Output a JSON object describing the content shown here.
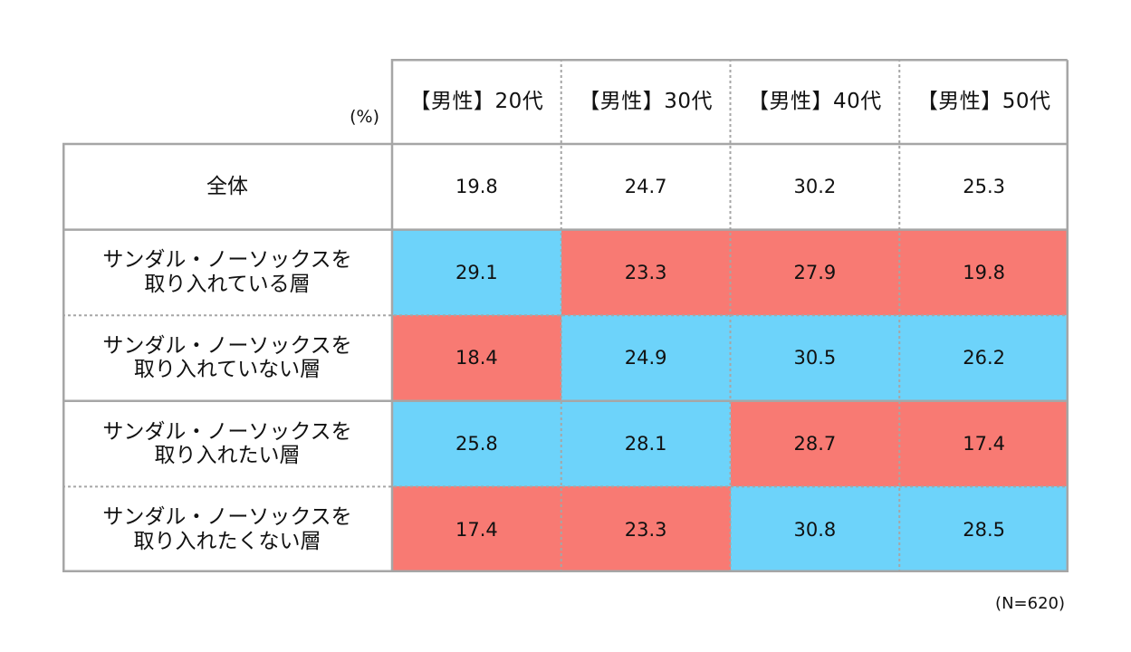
{
  "unit_label": "(%)",
  "note": "(N=620)",
  "colors": {
    "high": "#6dd3fa",
    "low": "#f87a73",
    "border": "#a6a6a6",
    "text": "#111111"
  },
  "chart_data": {
    "type": "table",
    "columns": [
      "【男性】20代",
      "【男性】30代",
      "【男性】40代",
      "【男性】50代"
    ],
    "rows": [
      {
        "label": "全体",
        "values": [
          "19.8",
          "24.7",
          "30.2",
          "25.3"
        ],
        "highlight": [
          "none",
          "none",
          "none",
          "none"
        ]
      },
      {
        "label": "サンダル・ノーソックスを\n取り入れている層",
        "values": [
          "29.1",
          "23.3",
          "27.9",
          "19.8"
        ],
        "highlight": [
          "high",
          "low",
          "low",
          "low"
        ]
      },
      {
        "label": "サンダル・ノーソックスを\n取り入れていない層",
        "values": [
          "18.4",
          "24.9",
          "30.5",
          "26.2"
        ],
        "highlight": [
          "low",
          "high",
          "high",
          "high"
        ]
      },
      {
        "label": "サンダル・ノーソックスを\n取り入れたい層",
        "values": [
          "25.8",
          "28.1",
          "28.7",
          "17.4"
        ],
        "highlight": [
          "high",
          "high",
          "low",
          "low"
        ]
      },
      {
        "label": "サンダル・ノーソックスを\n取り入れたくない層",
        "values": [
          "17.4",
          "23.3",
          "30.8",
          "28.5"
        ],
        "highlight": [
          "low",
          "low",
          "high",
          "high"
        ]
      }
    ]
  }
}
